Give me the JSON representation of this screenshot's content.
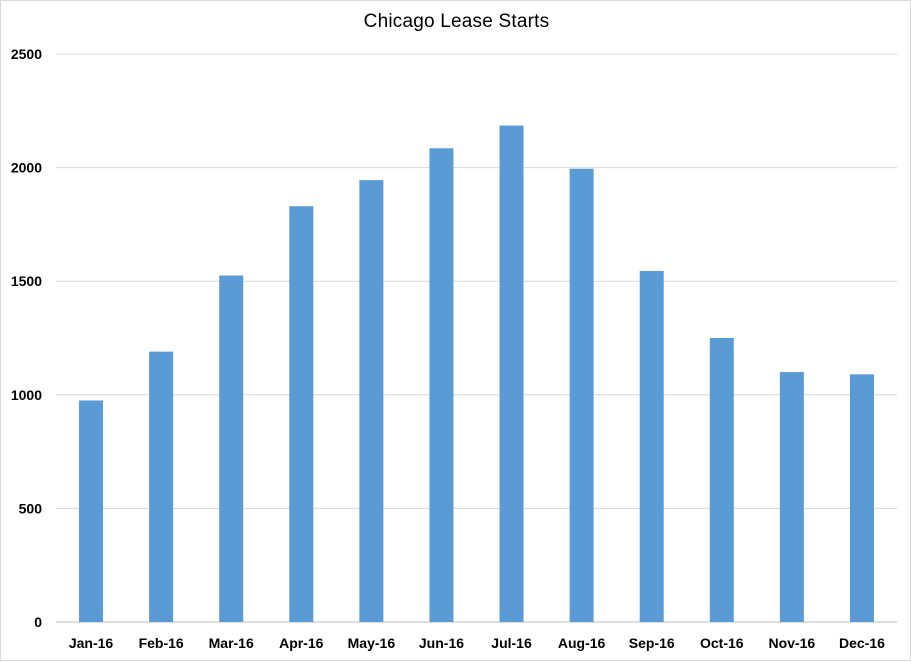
{
  "chart_data": {
    "type": "bar",
    "title": "Chicago  Lease Starts",
    "xlabel": "",
    "ylabel": "",
    "categories": [
      "Jan-16",
      "Feb-16",
      "Mar-16",
      "Apr-16",
      "May-16",
      "Jun-16",
      "Jul-16",
      "Aug-16",
      "Sep-16",
      "Oct-16",
      "Nov-16",
      "Dec-16"
    ],
    "values": [
      975,
      1190,
      1525,
      1830,
      1945,
      2085,
      2185,
      1995,
      1545,
      1250,
      1100,
      1090
    ],
    "ylim": [
      0,
      2500
    ],
    "yticks": [
      0,
      500,
      1000,
      1500,
      2000,
      2500
    ],
    "grid": true,
    "legend": "none",
    "bar_color": "#5B9BD5",
    "grid_color": "#d9d9d9",
    "axis_color": "#bfbfbf"
  }
}
